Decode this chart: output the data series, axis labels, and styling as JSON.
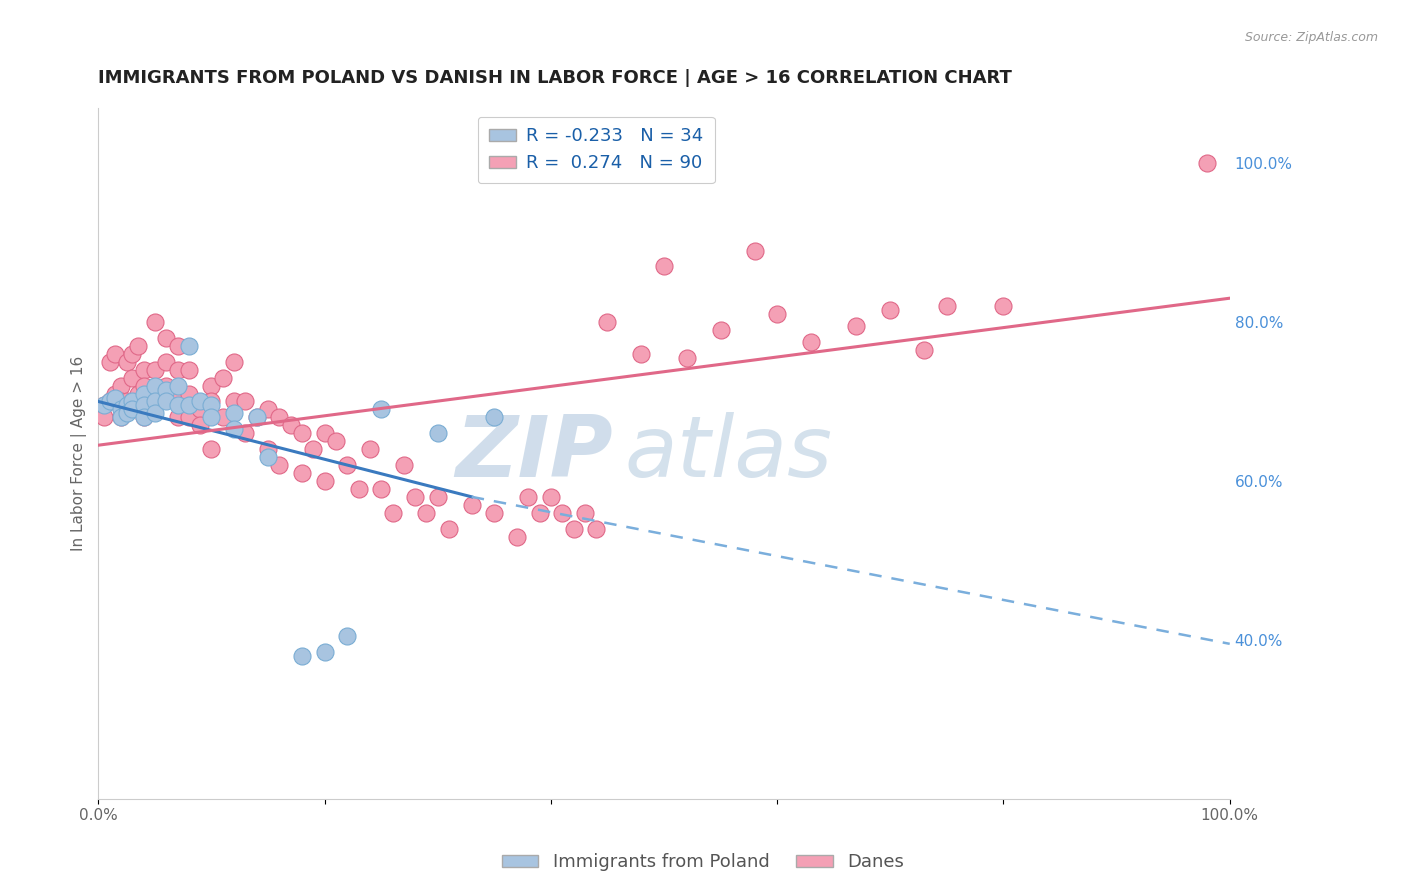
{
  "title": "IMMIGRANTS FROM POLAND VS DANISH IN LABOR FORCE | AGE > 16 CORRELATION CHART",
  "source": "Source: ZipAtlas.com",
  "ylabel_label": "In Labor Force | Age > 16",
  "right_ytick_positions": [
    0.4,
    0.6,
    0.8,
    1.0
  ],
  "right_ytick_labels": [
    "40.0%",
    "60.0%",
    "80.0%",
    "100.0%"
  ],
  "legend_entries": [
    {
      "label": "R = -0.233   N = 34",
      "color": "#a8c4e0"
    },
    {
      "label": "R =  0.274   N = 90",
      "color": "#f4a0b5"
    }
  ],
  "bottom_legend": [
    {
      "label": "Immigrants from Poland",
      "color": "#a8c4e0"
    },
    {
      "label": "Danes",
      "color": "#f4a0b5"
    }
  ],
  "poland_scatter": {
    "color": "#a8c4e0",
    "edgecolor": "#7aadd4",
    "x": [
      0.005,
      0.01,
      0.015,
      0.02,
      0.02,
      0.025,
      0.025,
      0.03,
      0.03,
      0.04,
      0.04,
      0.04,
      0.05,
      0.05,
      0.05,
      0.06,
      0.06,
      0.07,
      0.07,
      0.08,
      0.08,
      0.09,
      0.1,
      0.1,
      0.12,
      0.12,
      0.14,
      0.15,
      0.18,
      0.2,
      0.22,
      0.25,
      0.3,
      0.35
    ],
    "y": [
      0.695,
      0.7,
      0.705,
      0.69,
      0.68,
      0.695,
      0.685,
      0.7,
      0.69,
      0.71,
      0.695,
      0.68,
      0.72,
      0.7,
      0.685,
      0.715,
      0.7,
      0.72,
      0.695,
      0.77,
      0.695,
      0.7,
      0.695,
      0.68,
      0.685,
      0.665,
      0.68,
      0.63,
      0.38,
      0.385,
      0.405,
      0.69,
      0.66,
      0.68
    ]
  },
  "danes_scatter": {
    "color": "#f4a0b5",
    "edgecolor": "#e06888",
    "x": [
      0.005,
      0.005,
      0.01,
      0.01,
      0.015,
      0.015,
      0.02,
      0.02,
      0.02,
      0.025,
      0.025,
      0.03,
      0.03,
      0.03,
      0.035,
      0.035,
      0.04,
      0.04,
      0.04,
      0.04,
      0.05,
      0.05,
      0.05,
      0.06,
      0.06,
      0.06,
      0.07,
      0.07,
      0.07,
      0.07,
      0.08,
      0.08,
      0.08,
      0.09,
      0.09,
      0.1,
      0.1,
      0.1,
      0.11,
      0.11,
      0.12,
      0.12,
      0.13,
      0.13,
      0.14,
      0.15,
      0.15,
      0.16,
      0.16,
      0.17,
      0.18,
      0.18,
      0.19,
      0.2,
      0.2,
      0.21,
      0.22,
      0.23,
      0.24,
      0.25,
      0.26,
      0.27,
      0.28,
      0.29,
      0.3,
      0.31,
      0.33,
      0.35,
      0.37,
      0.38,
      0.39,
      0.4,
      0.41,
      0.42,
      0.43,
      0.44,
      0.45,
      0.48,
      0.5,
      0.52,
      0.55,
      0.58,
      0.6,
      0.63,
      0.67,
      0.7,
      0.73,
      0.75,
      0.8,
      0.98
    ],
    "y": [
      0.695,
      0.68,
      0.75,
      0.7,
      0.76,
      0.71,
      0.72,
      0.7,
      0.68,
      0.75,
      0.7,
      0.76,
      0.73,
      0.7,
      0.77,
      0.71,
      0.74,
      0.72,
      0.7,
      0.68,
      0.8,
      0.74,
      0.7,
      0.78,
      0.75,
      0.72,
      0.77,
      0.74,
      0.71,
      0.68,
      0.74,
      0.71,
      0.68,
      0.69,
      0.67,
      0.72,
      0.7,
      0.64,
      0.73,
      0.68,
      0.75,
      0.7,
      0.7,
      0.66,
      0.68,
      0.69,
      0.64,
      0.68,
      0.62,
      0.67,
      0.66,
      0.61,
      0.64,
      0.66,
      0.6,
      0.65,
      0.62,
      0.59,
      0.64,
      0.59,
      0.56,
      0.62,
      0.58,
      0.56,
      0.58,
      0.54,
      0.57,
      0.56,
      0.53,
      0.58,
      0.56,
      0.58,
      0.56,
      0.54,
      0.56,
      0.54,
      0.8,
      0.76,
      0.87,
      0.755,
      0.79,
      0.89,
      0.81,
      0.775,
      0.795,
      0.815,
      0.765,
      0.82,
      0.82,
      1.0
    ]
  },
  "poland_trend": {
    "color": "#3a7abf",
    "x_start": 0.0,
    "y_start": 0.7,
    "x_end": 0.33,
    "y_end": 0.58,
    "linestyle": "solid",
    "linewidth": 2.2
  },
  "poland_trend_dashed": {
    "color": "#7aaedc",
    "x_start": 0.33,
    "y_start": 0.58,
    "x_end": 1.0,
    "y_end": 0.395,
    "linestyle": "dashed",
    "linewidth": 1.8
  },
  "danes_trend": {
    "color": "#e06888",
    "x_start": 0.0,
    "y_start": 0.645,
    "x_end": 1.0,
    "y_end": 0.83,
    "linestyle": "solid",
    "linewidth": 2.2
  },
  "background_color": "#ffffff",
  "grid_color": "#dddddd",
  "watermark_zip": "ZIP",
  "watermark_atlas": "atlas",
  "title_fontsize": 13,
  "axis_fontsize": 11,
  "tick_fontsize": 11,
  "xlim": [
    0.0,
    1.0
  ],
  "ylim": [
    0.2,
    1.07
  ]
}
